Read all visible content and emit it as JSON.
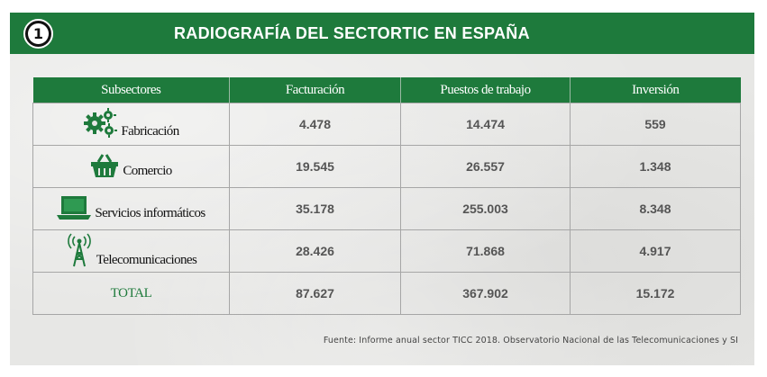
{
  "title": {
    "number": "1",
    "text": "RADIOGRAFÍA DEL SECTORTIC EN ESPAÑA"
  },
  "table": {
    "headers": [
      "Subsectores",
      "Facturación",
      "Puestos de trabajo",
      "Inversión"
    ],
    "rows": [
      {
        "subsector": "Fabricación",
        "icon": "gears-icon",
        "facturacion": "4.478",
        "puestos": "14.474",
        "inversion": "559"
      },
      {
        "subsector": "Comercio",
        "icon": "shopping-basket-icon",
        "facturacion": "19.545",
        "puestos": "26.557",
        "inversion": "1.348"
      },
      {
        "subsector": "Servicios informáticos",
        "icon": "laptop-icon",
        "facturacion": "35.178",
        "puestos": "255.003",
        "inversion": "8.348"
      },
      {
        "subsector": "Telecomunicaciones",
        "icon": "antenna-tower-icon",
        "facturacion": "28.426",
        "puestos": "71.868",
        "inversion": "4.917"
      }
    ],
    "total": {
      "label": "TOTAL",
      "facturacion": "87.627",
      "puestos": "367.902",
      "inversion": "15.172"
    }
  },
  "source": "Fuente: Informe anual sector TICC 2018. Observatorio Nacional de las Telecomunicaciones y SI",
  "colors": {
    "brand_green": "#1e7a3c",
    "panel_gray": "#e7e7e5",
    "value_gray": "#555555"
  }
}
